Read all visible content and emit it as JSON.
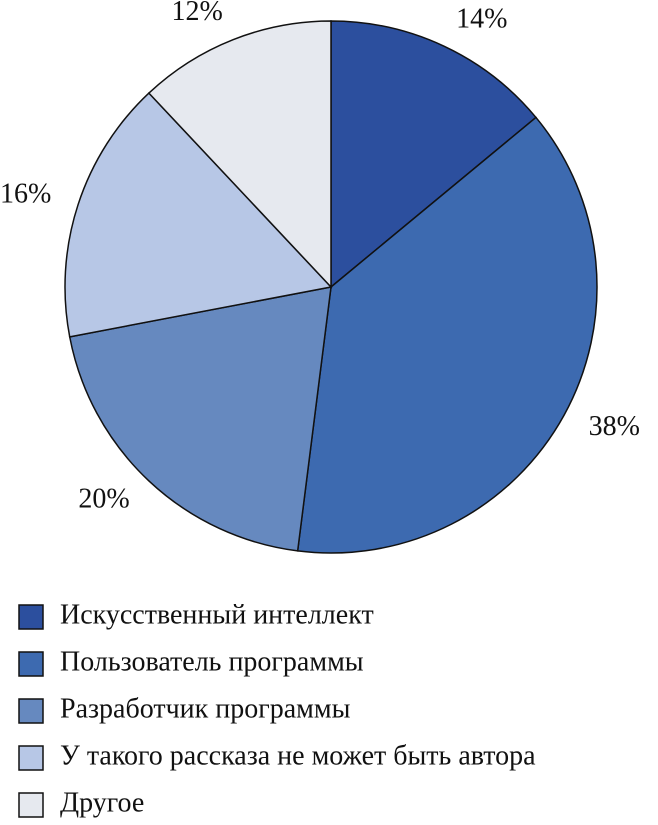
{
  "chart_data": {
    "type": "pie",
    "categories": [
      "Искусственный интеллект",
      "Пользователь программы",
      "Разработчик программы",
      "У такого рассказа не может быть автора",
      "Другое"
    ],
    "values": [
      14,
      38,
      20,
      16,
      12
    ],
    "value_labels": [
      "14%",
      "38%",
      "20%",
      "16%",
      "12%"
    ],
    "colors": [
      "#2c4f9e",
      "#3d6ab0",
      "#6689bf",
      "#b7c7e6",
      "#e6e9ef"
    ],
    "legend": "bottom"
  }
}
